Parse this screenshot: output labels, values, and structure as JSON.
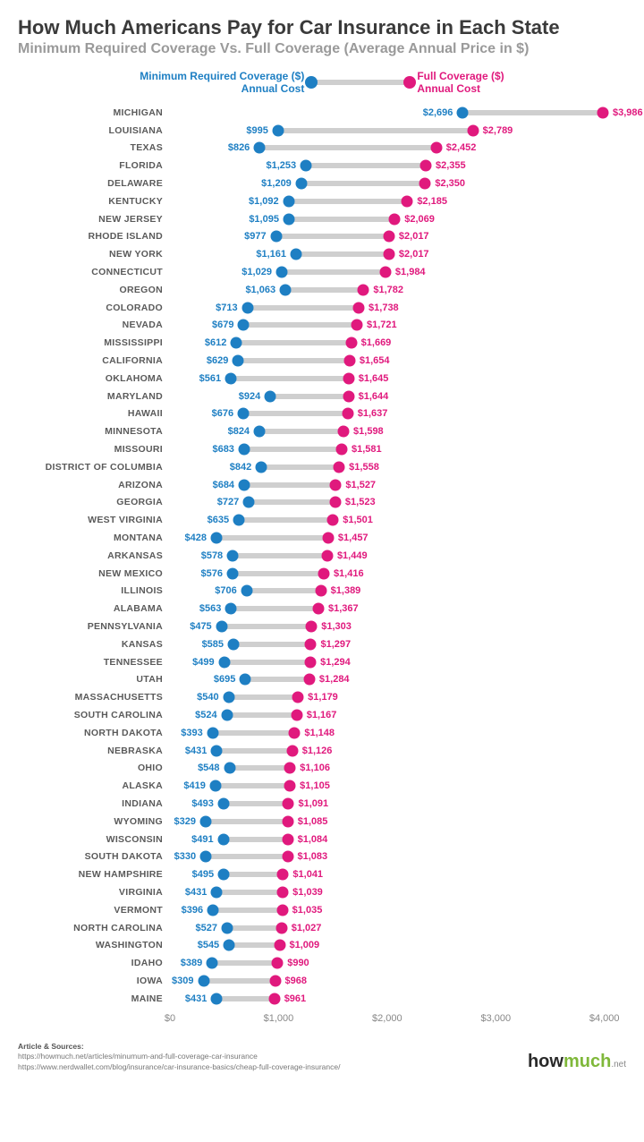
{
  "title": "How Much Americans Pay for Car Insurance in Each State",
  "subtitle": "Minimum Required Coverage Vs. Full Coverage (Average Annual Price in $)",
  "legend": {
    "min_line1": "Minimum Required Coverage ($)",
    "min_line2": "Annual Cost",
    "full_line1": "Full Coverage ($)",
    "full_line2": "Annual Cost"
  },
  "colors": {
    "min": "#1e7fc3",
    "full": "#e0197d",
    "connector": "#cfcfcf",
    "bg": "#ffffff"
  },
  "chart": {
    "type": "dumbbell",
    "xmin": 0,
    "xmax": 4200,
    "ticks": [
      0,
      1000,
      2000,
      3000,
      4000
    ],
    "tick_labels": [
      "$0",
      "$1,000",
      "$2,000",
      "$3,000",
      "$4,000"
    ],
    "dot_radius": 6.5,
    "connector_height": 6,
    "row_height": 19.8,
    "label_fontsize": 10.5,
    "value_fontsize": 11
  },
  "rows": [
    {
      "state": "MICHIGAN",
      "min": 2696,
      "full": 3986,
      "min_label": "$2,696",
      "full_label": "$3,986"
    },
    {
      "state": "LOUISIANA",
      "min": 995,
      "full": 2789,
      "min_label": "$995",
      "full_label": "$2,789"
    },
    {
      "state": "TEXAS",
      "min": 826,
      "full": 2452,
      "min_label": "$826",
      "full_label": "$2,452"
    },
    {
      "state": "FLORIDA",
      "min": 1253,
      "full": 2355,
      "min_label": "$1,253",
      "full_label": "$2,355"
    },
    {
      "state": "DELAWARE",
      "min": 1209,
      "full": 2350,
      "min_label": "$1,209",
      "full_label": "$2,350"
    },
    {
      "state": "KENTUCKY",
      "min": 1092,
      "full": 2185,
      "min_label": "$1,092",
      "full_label": "$2,185"
    },
    {
      "state": "NEW JERSEY",
      "min": 1095,
      "full": 2069,
      "min_label": "$1,095",
      "full_label": "$2,069"
    },
    {
      "state": "RHODE ISLAND",
      "min": 977,
      "full": 2017,
      "min_label": "$977",
      "full_label": "$2,017"
    },
    {
      "state": "NEW YORK",
      "min": 1161,
      "full": 2017,
      "min_label": "$1,161",
      "full_label": "$2,017"
    },
    {
      "state": "CONNECTICUT",
      "min": 1029,
      "full": 1984,
      "min_label": "$1,029",
      "full_label": "$1,984"
    },
    {
      "state": "OREGON",
      "min": 1063,
      "full": 1782,
      "min_label": "$1,063",
      "full_label": "$1,782"
    },
    {
      "state": "COLORADO",
      "min": 713,
      "full": 1738,
      "min_label": "$713",
      "full_label": "$1,738"
    },
    {
      "state": "NEVADA",
      "min": 679,
      "full": 1721,
      "min_label": "$679",
      "full_label": "$1,721"
    },
    {
      "state": "MISSISSIPPI",
      "min": 612,
      "full": 1669,
      "min_label": "$612",
      "full_label": "$1,669"
    },
    {
      "state": "CALIFORNIA",
      "min": 629,
      "full": 1654,
      "min_label": "$629",
      "full_label": "$1,654"
    },
    {
      "state": "OKLAHOMA",
      "min": 561,
      "full": 1645,
      "min_label": "$561",
      "full_label": "$1,645"
    },
    {
      "state": "MARYLAND",
      "min": 924,
      "full": 1644,
      "min_label": "$924",
      "full_label": "$1,644"
    },
    {
      "state": "HAWAII",
      "min": 676,
      "full": 1637,
      "min_label": "$676",
      "full_label": "$1,637"
    },
    {
      "state": "MINNESOTA",
      "min": 824,
      "full": 1598,
      "min_label": "$824",
      "full_label": "$1,598"
    },
    {
      "state": "MISSOURI",
      "min": 683,
      "full": 1581,
      "min_label": "$683",
      "full_label": "$1,581"
    },
    {
      "state": "DISTRICT OF COLUMBIA",
      "min": 842,
      "full": 1558,
      "min_label": "$842",
      "full_label": "$1,558"
    },
    {
      "state": "ARIZONA",
      "min": 684,
      "full": 1527,
      "min_label": "$684",
      "full_label": "$1,527"
    },
    {
      "state": "GEORGIA",
      "min": 727,
      "full": 1523,
      "min_label": "$727",
      "full_label": "$1,523"
    },
    {
      "state": "WEST VIRGINIA",
      "min": 635,
      "full": 1501,
      "min_label": "$635",
      "full_label": "$1,501"
    },
    {
      "state": "MONTANA",
      "min": 428,
      "full": 1457,
      "min_label": "$428",
      "full_label": "$1,457"
    },
    {
      "state": "ARKANSAS",
      "min": 578,
      "full": 1449,
      "min_label": "$578",
      "full_label": "$1,449"
    },
    {
      "state": "NEW MEXICO",
      "min": 576,
      "full": 1416,
      "min_label": "$576",
      "full_label": "$1,416"
    },
    {
      "state": "ILLINOIS",
      "min": 706,
      "full": 1389,
      "min_label": "$706",
      "full_label": "$1,389"
    },
    {
      "state": "ALABAMA",
      "min": 563,
      "full": 1367,
      "min_label": "$563",
      "full_label": "$1,367"
    },
    {
      "state": "PENNSYLVANIA",
      "min": 475,
      "full": 1303,
      "min_label": "$475",
      "full_label": "$1,303"
    },
    {
      "state": "KANSAS",
      "min": 585,
      "full": 1297,
      "min_label": "$585",
      "full_label": "$1,297"
    },
    {
      "state": "TENNESSEE",
      "min": 499,
      "full": 1294,
      "min_label": "$499",
      "full_label": "$1,294"
    },
    {
      "state": "UTAH",
      "min": 695,
      "full": 1284,
      "min_label": "$695",
      "full_label": "$1,284"
    },
    {
      "state": "MASSACHUSETTS",
      "min": 540,
      "full": 1179,
      "min_label": "$540",
      "full_label": "$1,179"
    },
    {
      "state": "SOUTH CAROLINA",
      "min": 524,
      "full": 1167,
      "min_label": "$524",
      "full_label": "$1,167"
    },
    {
      "state": "NORTH DAKOTA",
      "min": 393,
      "full": 1148,
      "min_label": "$393",
      "full_label": "$1,148"
    },
    {
      "state": "NEBRASKA",
      "min": 431,
      "full": 1126,
      "min_label": "$431",
      "full_label": "$1,126"
    },
    {
      "state": "OHIO",
      "min": 548,
      "full": 1106,
      "min_label": "$548",
      "full_label": "$1,106"
    },
    {
      "state": "ALASKA",
      "min": 419,
      "full": 1105,
      "min_label": "$419",
      "full_label": "$1,105"
    },
    {
      "state": "INDIANA",
      "min": 493,
      "full": 1091,
      "min_label": "$493",
      "full_label": "$1,091"
    },
    {
      "state": "WYOMING",
      "min": 329,
      "full": 1085,
      "min_label": "$329",
      "full_label": "$1,085"
    },
    {
      "state": "WISCONSIN",
      "min": 491,
      "full": 1084,
      "min_label": "$491",
      "full_label": "$1,084"
    },
    {
      "state": "SOUTH DAKOTA",
      "min": 330,
      "full": 1083,
      "min_label": "$330",
      "full_label": "$1,083"
    },
    {
      "state": "NEW HAMPSHIRE",
      "min": 495,
      "full": 1041,
      "min_label": "$495",
      "full_label": "$1,041"
    },
    {
      "state": "VIRGINIA",
      "min": 431,
      "full": 1039,
      "min_label": "$431",
      "full_label": "$1,039"
    },
    {
      "state": "VERMONT",
      "min": 396,
      "full": 1035,
      "min_label": "$396",
      "full_label": "$1,035"
    },
    {
      "state": "NORTH CAROLINA",
      "min": 527,
      "full": 1027,
      "min_label": "$527",
      "full_label": "$1,027"
    },
    {
      "state": "WASHINGTON",
      "min": 545,
      "full": 1009,
      "min_label": "$545",
      "full_label": "$1,009"
    },
    {
      "state": "IDAHO",
      "min": 389,
      "full": 990,
      "min_label": "$389",
      "full_label": "$990"
    },
    {
      "state": "IOWA",
      "min": 309,
      "full": 968,
      "min_label": "$309",
      "full_label": "$968"
    },
    {
      "state": "MAINE",
      "min": 431,
      "full": 961,
      "min_label": "$431",
      "full_label": "$961"
    }
  ],
  "footer": {
    "hdr": "Article & Sources:",
    "s1": "https://howmuch.net/articles/minumum-and-full-coverage-car-insurance",
    "s2": "https://www.nerdwallet.com/blog/insurance/car-insurance-basics/cheap-full-coverage-insurance/",
    "logo_a": "how",
    "logo_b": "much",
    "logo_net": ".net"
  }
}
